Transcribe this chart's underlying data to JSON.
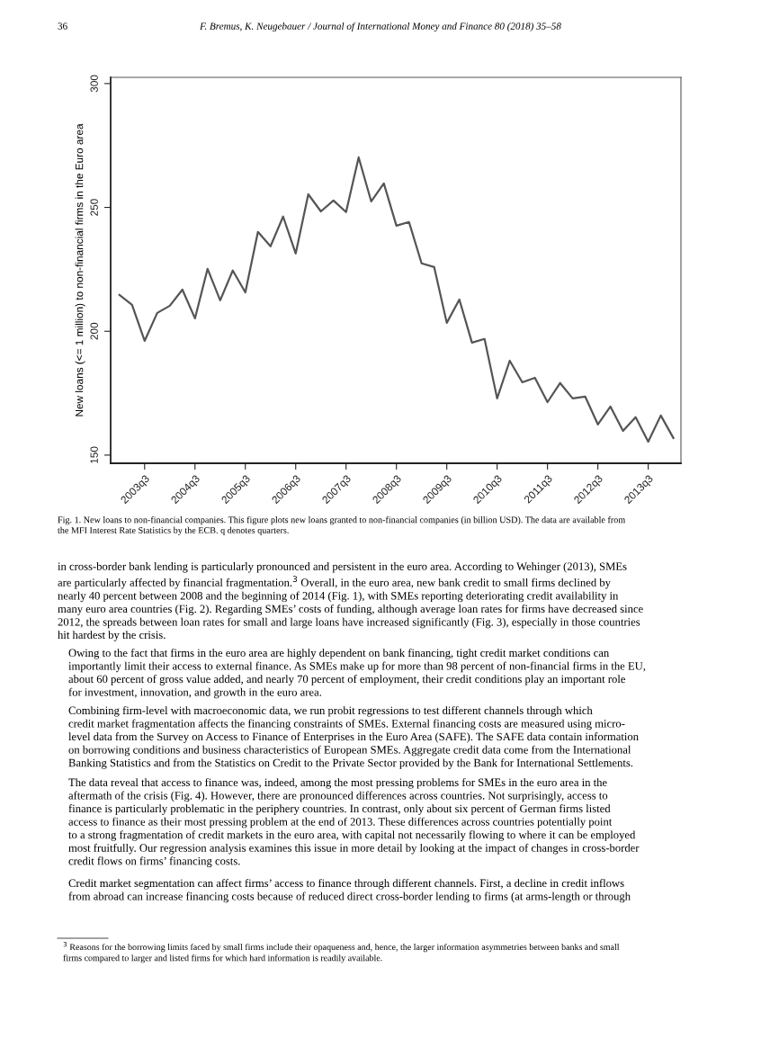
{
  "chart_data": {
    "type": "line",
    "ylabel": "New loans (<= 1 million) to non-financial firms in the Euro area",
    "categories": [
      null,
      null,
      "2003q3",
      null,
      null,
      null,
      "2004q3",
      null,
      null,
      null,
      "2005q3",
      null,
      null,
      null,
      "2006q3",
      null,
      null,
      null,
      "2007q3",
      null,
      null,
      null,
      "2008q3",
      null,
      null,
      null,
      "2009q3",
      null,
      null,
      null,
      "2010q3",
      null,
      null,
      null,
      "2011q3",
      null,
      null,
      null,
      "2012q3",
      null,
      null,
      null,
      "2013q3",
      null,
      null
    ],
    "series": [
      {
        "color": "#555555",
        "values": [
          214.7,
          210.7,
          196.1,
          207.4,
          210.3,
          216.8,
          205.2,
          225.2,
          212.5,
          224.5,
          215.7,
          240.1,
          234.3,
          246.3,
          231.4,
          255.3,
          248.4,
          252.8,
          248.1,
          270.2,
          252.4,
          259.7,
          242.6,
          244.1,
          227.4,
          225.9,
          203.4,
          212.8,
          195.4,
          196.9,
          172.9,
          188.1,
          179.4,
          181.2,
          171.4,
          179.1,
          172.9,
          173.6,
          162.4,
          169.6,
          159.8,
          165.3,
          155.4,
          166.0,
          156.9
        ]
      }
    ],
    "ylim": [
      146.7,
      302.5
    ],
    "yticks": [
      150,
      200,
      250,
      300
    ],
    "grid": false,
    "legend": false,
    "marker": "none",
    "line_style": "solid",
    "annotations": [
      "36",
      "F. Bremus, K. Neugebauer / Journal of International Money and Finance 80 (2018) 35–58",
      "Fig. 1. New loans to non-financial companies. This figure plots new loans granted to non-financial companies (in billion USD). The data are available from\nthe MFI Interest Rate Statistics by the ECB. q denotes quarters.",
      "in cross-border bank lending is particularly pronounced and persistent in the euro area. According to Wehinger (2013), SMEs\nare particularly affected by financial fragmentation.$^{3}$ Overall, in the euro area, new bank credit to small firms declined by\nnearly 40 percent between 2008 and the beginning of 2014 (Fig. 1), with SMEs reporting deteriorating credit availability in\nmany euro area countries (Fig. 2). Regarding SMEs’ costs of funding, although average loan rates for firms have decreased since\n2012, the spreads between loan rates for small and large loans have increased significantly (Fig. 3), especially in those countries\nhit hardest by the crisis.",
      "Owing to the fact that firms in the euro area are highly dependent on bank financing, tight credit market conditions can\nimportantly limit their access to external finance. As SMEs make up for more than 98 percent of non-financial firms in the EU,\nabout 60 percent of gross value added, and nearly 70 percent of employment, their credit conditions play an important role\nfor investment, innovation, and growth in the euro area.",
      "Combining firm-level with macroeconomic data, we run probit regressions to test different channels through which\ncredit market fragmentation affects the financing constraints of SMEs. External financing costs are measured using micro-\nlevel data from the Survey on Access to Finance of Enterprises in the Euro Area (SAFE). The SAFE data contain information\non borrowing conditions and business characteristics of European SMEs. Aggregate credit data come from the International\nBanking Statistics and from the Statistics on Credit to the Private Sector provided by the Bank for International Settlements.",
      "The data reveal that access to finance was, indeed, among the most pressing problems for SMEs in the euro area in the\naftermath of the crisis (Fig. 4). However, there are pronounced differences across countries. Not surprisingly, access to\nfinance is particularly problematic in the periphery countries. In contrast, only about six percent of German firms listed\naccess to finance as their most pressing problem at the end of 2013. These differences across countries potentially point\nto a strong fragmentation of credit markets in the euro area, with capital not necessarily flowing to where it can be employed\nmost fruitfully. Our regression analysis examines this issue in more detail by looking at the impact of changes in cross-border\ncredit flows on firms’ financing costs.",
      "Credit market segmentation can affect firms’ access to finance through different channels. First, a decline in credit inflows\nfrom abroad can increase financing costs because of reduced direct cross-border lending to firms (at arms-length or through",
      "$^{3}$ Reasons for the borrowing limits faced by small firms include their opaqueness and, hence, the larger information asymmetries between banks and small\nfirms compared to larger and listed firms for which hard information is readily available."
    ]
  }
}
